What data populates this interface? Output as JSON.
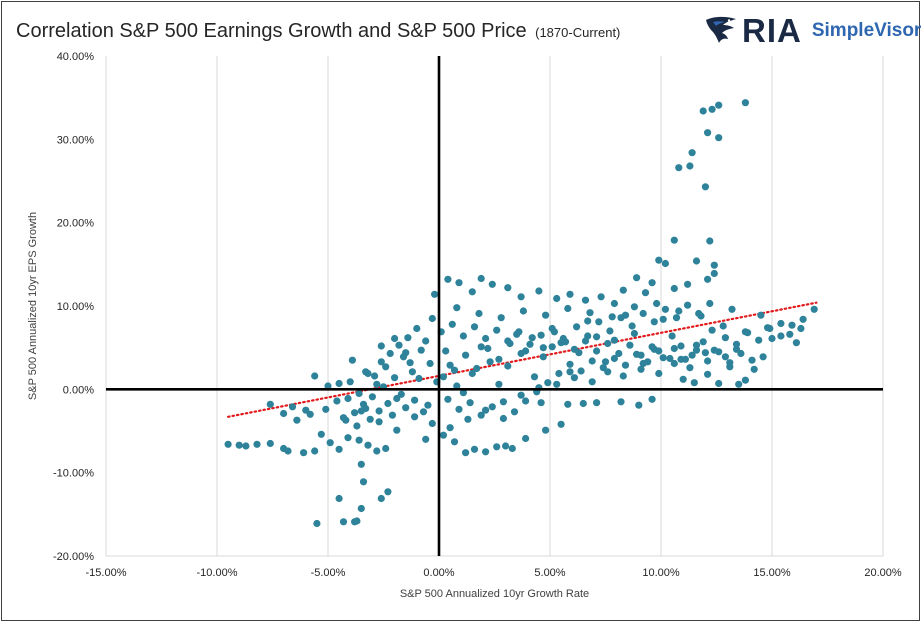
{
  "title": {
    "main": "Correlation S&P 500 Earnings Growth and S&P 500 Price",
    "sub": "(1870-Current)"
  },
  "brand": {
    "name": "RIA",
    "product": "SimpleVisor",
    "icon": "eagle-logo-icon",
    "colors": {
      "ria": "#1b2a44",
      "simplevisor": "#2f66b0"
    }
  },
  "chart_data": {
    "type": "scatter",
    "xlabel": "S&P 500 Annualized 10yr Growth Rate",
    "ylabel": "S&P 500 Annualized 10yr EPS Growth",
    "xlim": [
      -15,
      20
    ],
    "ylim": [
      -20,
      40
    ],
    "x_ticks": [
      -15,
      -10,
      -5,
      0,
      5,
      10,
      15,
      20
    ],
    "y_ticks": [
      -20,
      -10,
      0,
      10,
      20,
      30,
      40
    ],
    "x_tick_labels": [
      "-15.00%",
      "-10.00%",
      "-5.00%",
      "0.00%",
      "5.00%",
      "10.00%",
      "15.00%",
      "20.00%"
    ],
    "y_tick_labels": [
      "-20.00%",
      "-10.00%",
      "0.00%",
      "10.00%",
      "20.00%",
      "30.00%",
      "40.00%"
    ],
    "grid": "vertical",
    "legend": "none",
    "marker_color": "#2e8299",
    "trendline": {
      "type": "linear",
      "style": "dotted",
      "color": "#e31a1c",
      "x": [
        -9.5,
        17
      ],
      "y": [
        -3.3,
        10.4
      ]
    },
    "series": [
      {
        "points": [
          [
            13.8,
            34.4
          ],
          [
            12.6,
            34.1
          ],
          [
            12.3,
            33.6
          ],
          [
            11.9,
            33.4
          ],
          [
            12.1,
            30.8
          ],
          [
            12.6,
            30.2
          ],
          [
            11.4,
            28.4
          ],
          [
            11.3,
            26.8
          ],
          [
            10.8,
            26.6
          ],
          [
            12.0,
            24.3
          ],
          [
            12.2,
            17.8
          ],
          [
            10.6,
            17.9
          ],
          [
            11.6,
            15.4
          ],
          [
            12.4,
            14.9
          ],
          [
            9.9,
            15.5
          ],
          [
            10.2,
            15.1
          ],
          [
            12.4,
            13.9
          ],
          [
            8.9,
            13.4
          ],
          [
            11.2,
            12.6
          ],
          [
            12.1,
            13.2
          ],
          [
            9.6,
            12.8
          ],
          [
            10.6,
            12.1
          ],
          [
            8.3,
            11.9
          ],
          [
            9.3,
            11.6
          ],
          [
            -9.5,
            -6.6
          ],
          [
            -9.0,
            -6.7
          ],
          [
            -8.7,
            -6.8
          ],
          [
            -8.2,
            -6.6
          ],
          [
            -7.6,
            -6.5
          ],
          [
            -7.0,
            -7.1
          ],
          [
            -6.8,
            -7.4
          ],
          [
            -6.1,
            -7.6
          ],
          [
            -5.6,
            -7.4
          ],
          [
            -5.3,
            -5.4
          ],
          [
            -4.9,
            -6.4
          ],
          [
            -4.5,
            -7.2
          ],
          [
            -4.1,
            -5.8
          ],
          [
            -3.6,
            -6.1
          ],
          [
            -3.2,
            -6.7
          ],
          [
            -2.8,
            -7.4
          ],
          [
            -2.4,
            -7.1
          ],
          [
            -5.5,
            -16.1
          ],
          [
            -4.5,
            -13.1
          ],
          [
            -4.3,
            -15.9
          ],
          [
            -3.8,
            -15.9
          ],
          [
            -3.7,
            -15.8
          ],
          [
            -3.5,
            -14.3
          ],
          [
            -3.4,
            -11.1
          ],
          [
            -3.5,
            -9.0
          ],
          [
            -2.6,
            -13.1
          ],
          [
            -2.3,
            -12.3
          ],
          [
            -7.6,
            -1.8
          ],
          [
            -7.0,
            -2.9
          ],
          [
            -6.4,
            -3.7
          ],
          [
            -6.0,
            -2.5
          ],
          [
            -5.6,
            1.6
          ],
          [
            -5.0,
            0.4
          ],
          [
            -4.6,
            -1.4
          ],
          [
            -3.9,
            3.5
          ],
          [
            -3.3,
            2.1
          ],
          [
            -2.6,
            5.2
          ],
          [
            -2.0,
            6.1
          ],
          [
            -1.5,
            4.4
          ],
          [
            -1.0,
            7.3
          ],
          [
            -0.6,
            5.8
          ],
          [
            -0.3,
            8.5
          ],
          [
            0.4,
            13.2
          ],
          [
            0.9,
            12.8
          ],
          [
            1.5,
            11.7
          ],
          [
            1.9,
            13.3
          ],
          [
            2.4,
            12.6
          ],
          [
            3.1,
            12.2
          ],
          [
            3.7,
            11.1
          ],
          [
            4.5,
            11.8
          ],
          [
            5.3,
            10.9
          ],
          [
            5.9,
            11.4
          ],
          [
            6.6,
            10.7
          ],
          [
            7.3,
            11.1
          ],
          [
            7.9,
            10.3
          ],
          [
            1.2,
            -7.6
          ],
          [
            1.6,
            -7.2
          ],
          [
            2.1,
            -7.5
          ],
          [
            2.6,
            -6.9
          ],
          [
            3.3,
            -7.1
          ],
          [
            0.7,
            -6.3
          ],
          [
            0.2,
            -5.5
          ],
          [
            -0.6,
            -6.0
          ],
          [
            4.6,
            -1.6
          ],
          [
            5.8,
            -1.8
          ],
          [
            6.5,
            -1.7
          ],
          [
            7.1,
            -1.6
          ],
          [
            8.2,
            -1.5
          ],
          [
            9.0,
            -1.9
          ],
          [
            9.6,
            -1.2
          ],
          [
            16.9,
            9.6
          ],
          [
            16.4,
            8.4
          ],
          [
            16.1,
            5.6
          ],
          [
            15.4,
            7.9
          ],
          [
            15.0,
            6.1
          ],
          [
            14.6,
            3.9
          ],
          [
            14.2,
            2.4
          ],
          [
            13.8,
            1.1
          ],
          [
            13.5,
            0.6
          ],
          [
            13.1,
            2.7
          ],
          [
            12.6,
            0.7
          ],
          [
            12.1,
            1.8
          ],
          [
            11.5,
            0.8
          ],
          [
            11.0,
            1.2
          ],
          [
            14.5,
            8.9
          ],
          [
            13.2,
            9.6
          ],
          [
            12.3,
            7.1
          ],
          [
            11.6,
            5.3
          ],
          [
            10.9,
            3.6
          ],
          [
            10.5,
            6.4
          ],
          [
            10.1,
            8.4
          ],
          [
            9.7,
            4.8
          ],
          [
            9.2,
            3.1
          ],
          [
            8.8,
            6.7
          ],
          [
            8.4,
            8.9
          ],
          [
            7.9,
            5.9
          ],
          [
            7.5,
            3.3
          ],
          [
            7.1,
            6.3
          ],
          [
            6.7,
            8.2
          ],
          [
            6.3,
            4.4
          ],
          [
            5.9,
            2.1
          ],
          [
            5.5,
            5.6
          ],
          [
            5.1,
            7.3
          ],
          [
            4.7,
            3.9
          ],
          [
            4.3,
            1.5
          ],
          [
            3.9,
            4.6
          ],
          [
            3.5,
            6.6
          ],
          [
            3.1,
            2.8
          ],
          [
            2.7,
            0.6
          ],
          [
            2.3,
            3.3
          ],
          [
            1.9,
            5.1
          ],
          [
            1.5,
            1.9
          ],
          [
            1.1,
            -0.4
          ],
          [
            0.7,
            2.3
          ],
          [
            0.3,
            4.6
          ],
          [
            -0.1,
            0.9
          ],
          [
            -0.5,
            -1.9
          ],
          [
            -0.9,
            1.3
          ],
          [
            -1.3,
            3.2
          ],
          [
            -1.7,
            -0.6
          ],
          [
            -2.1,
            -3.1
          ],
          [
            -2.5,
            0.3
          ],
          [
            -2.9,
            1.6
          ],
          [
            -3.3,
            -2.3
          ],
          [
            -3.7,
            -4.4
          ],
          [
            -4.1,
            -1.1
          ],
          [
            -4.5,
            0.7
          ],
          [
            -0.2,
            11.4
          ],
          [
            0.8,
            9.8
          ],
          [
            1.8,
            9.1
          ],
          [
            2.8,
            8.6
          ],
          [
            3.8,
            9.4
          ],
          [
            4.8,
            8.9
          ],
          [
            5.8,
            9.7
          ],
          [
            6.8,
            9.2
          ],
          [
            7.8,
            8.7
          ],
          [
            8.8,
            9.9
          ],
          [
            9.8,
            10.3
          ],
          [
            10.8,
            9.4
          ],
          [
            11.8,
            8.8
          ],
          [
            12.8,
            7.6
          ],
          [
            13.8,
            6.9
          ],
          [
            14.8,
            7.4
          ],
          [
            15.8,
            6.6
          ],
          [
            16.3,
            7.3
          ],
          [
            14.1,
            3.5
          ],
          [
            13.4,
            4.8
          ],
          [
            12.9,
            3.9
          ],
          [
            12.0,
            4.4
          ],
          [
            11.3,
            2.6
          ],
          [
            10.6,
            3.1
          ],
          [
            9.9,
            1.9
          ],
          [
            9.1,
            2.4
          ],
          [
            8.3,
            1.6
          ],
          [
            7.6,
            2.1
          ],
          [
            6.9,
            0.9
          ],
          [
            6.1,
            1.4
          ],
          [
            5.3,
            0.6
          ],
          [
            4.5,
            0.2
          ],
          [
            3.7,
            -0.7
          ],
          [
            2.9,
            -1.5
          ],
          [
            2.1,
            -2.5
          ],
          [
            1.3,
            -3.6
          ],
          [
            0.5,
            -4.6
          ],
          [
            -0.3,
            -4.1
          ],
          [
            -1.1,
            -3.3
          ],
          [
            -1.9,
            -4.9
          ],
          [
            -2.7,
            -3.9
          ],
          [
            -3.5,
            -2.6
          ],
          [
            -4.3,
            -3.4
          ],
          [
            -5.1,
            -2.4
          ],
          [
            -5.8,
            -3.0
          ],
          [
            -6.6,
            -2.1
          ],
          [
            0.1,
            6.9
          ],
          [
            0.6,
            7.8
          ],
          [
            1.1,
            6.4
          ],
          [
            1.6,
            7.5
          ],
          [
            2.1,
            6.1
          ],
          [
            2.6,
            7.1
          ],
          [
            3.1,
            5.8
          ],
          [
            3.6,
            6.9
          ],
          [
            4.1,
            5.4
          ],
          [
            4.6,
            6.5
          ],
          [
            5.1,
            5.1
          ],
          [
            5.6,
            6.1
          ],
          [
            6.1,
            4.8
          ],
          [
            6.6,
            5.8
          ],
          [
            7.1,
            4.6
          ],
          [
            7.6,
            5.5
          ],
          [
            8.1,
            4.3
          ],
          [
            8.6,
            5.3
          ],
          [
            9.1,
            4.1
          ],
          [
            9.6,
            5.1
          ],
          [
            10.1,
            3.8
          ],
          [
            10.6,
            4.9
          ],
          [
            11.1,
            3.6
          ],
          [
            11.6,
            4.7
          ],
          [
            12.1,
            3.4
          ],
          [
            12.6,
            4.5
          ],
          [
            13.1,
            3.2
          ],
          [
            13.6,
            4.3
          ],
          [
            -0.4,
            3.1
          ],
          [
            -0.8,
            4.7
          ],
          [
            -1.2,
            2.1
          ],
          [
            -1.6,
            3.9
          ],
          [
            -2.0,
            1.4
          ],
          [
            -2.4,
            2.7
          ],
          [
            -2.8,
            0.6
          ],
          [
            -3.2,
            1.9
          ],
          [
            -3.6,
            -0.5
          ],
          [
            -4.0,
            0.9
          ],
          [
            0.4,
            -1.2
          ],
          [
            0.9,
            -2.4
          ],
          [
            1.4,
            -1.6
          ],
          [
            1.9,
            -3.1
          ],
          [
            2.4,
            -2.1
          ],
          [
            2.9,
            -3.5
          ],
          [
            3.4,
            -2.7
          ],
          [
            3.9,
            -1.4
          ],
          [
            4.4,
            -0.3
          ],
          [
            4.9,
            0.8
          ],
          [
            5.4,
            1.9
          ],
          [
            5.9,
            3.0
          ],
          [
            6.4,
            2.2
          ],
          [
            6.9,
            3.4
          ],
          [
            7.4,
            2.6
          ],
          [
            7.9,
            3.7
          ],
          [
            8.4,
            2.9
          ],
          [
            8.9,
            4.2
          ],
          [
            9.4,
            3.3
          ],
          [
            9.9,
            4.6
          ],
          [
            10.4,
            3.7
          ],
          [
            10.9,
            5.2
          ],
          [
            11.4,
            4.1
          ],
          [
            11.9,
            5.7
          ],
          [
            12.4,
            4.7
          ],
          [
            12.9,
            6.2
          ],
          [
            13.4,
            5.4
          ],
          [
            13.9,
            6.8
          ],
          [
            14.4,
            5.9
          ],
          [
            14.9,
            7.3
          ],
          [
            15.4,
            6.4
          ],
          [
            15.9,
            7.7
          ],
          [
            0.2,
            1.5
          ],
          [
            0.5,
            2.9
          ],
          [
            0.8,
            0.4
          ],
          [
            1.2,
            4.1
          ],
          [
            1.7,
            2.5
          ],
          [
            2.2,
            4.9
          ],
          [
            2.7,
            3.6
          ],
          [
            3.2,
            5.5
          ],
          [
            3.7,
            4.3
          ],
          [
            4.2,
            6.2
          ],
          [
            4.7,
            5.0
          ],
          [
            5.2,
            6.9
          ],
          [
            5.7,
            5.7
          ],
          [
            6.2,
            7.5
          ],
          [
            6.7,
            6.4
          ],
          [
            7.2,
            8.1
          ],
          [
            7.7,
            7.0
          ],
          [
            8.2,
            8.6
          ],
          [
            8.7,
            7.6
          ],
          [
            9.2,
            9.1
          ],
          [
            9.7,
            8.1
          ],
          [
            10.2,
            9.6
          ],
          [
            10.7,
            8.6
          ],
          [
            11.2,
            10.1
          ],
          [
            11.7,
            9.1
          ],
          [
            12.2,
            10.3
          ],
          [
            -1.4,
            6.2
          ],
          [
            -1.8,
            5.3
          ],
          [
            -2.2,
            4.3
          ],
          [
            -2.6,
            3.3
          ],
          [
            -3.0,
            -0.9
          ],
          [
            -3.4,
            -1.8
          ],
          [
            -3.8,
            -2.8
          ],
          [
            -4.2,
            -3.7
          ],
          [
            -0.7,
            -2.7
          ],
          [
            -1.1,
            -1.3
          ],
          [
            -1.5,
            -2.2
          ],
          [
            -1.9,
            -1.1
          ],
          [
            -2.3,
            -1.7
          ],
          [
            -2.7,
            -2.6
          ],
          [
            -3.1,
            -3.6
          ],
          [
            3.0,
            -6.8
          ],
          [
            3.9,
            -5.9
          ],
          [
            4.8,
            -4.9
          ],
          [
            5.5,
            -4.2
          ]
        ]
      }
    ]
  }
}
